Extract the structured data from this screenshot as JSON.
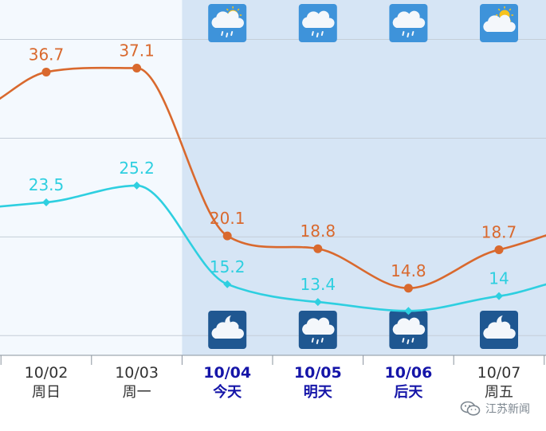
{
  "chart_data": {
    "type": "line",
    "title": "",
    "xlabel": "",
    "ylabel": "",
    "ylim": [
      8,
      44
    ],
    "grid": true,
    "categories": [
      {
        "date": "10/02",
        "day": "周日"
      },
      {
        "date": "10/03",
        "day": "周一"
      },
      {
        "date": "10/04",
        "day": "今天"
      },
      {
        "date": "10/05",
        "day": "明天"
      },
      {
        "date": "10/06",
        "day": "后天"
      },
      {
        "date": "10/07",
        "day": "周五"
      }
    ],
    "highlight_categories": [
      2,
      3,
      4
    ],
    "series": [
      {
        "color": "#d9692e",
        "values": [
          36.7,
          37.1,
          20.1,
          18.8,
          14.8,
          18.7
        ],
        "labels": [
          "36.7",
          "37.1",
          "20.1",
          "18.8",
          "14.8",
          "18.7"
        ]
      },
      {
        "color": "#2ecfe0",
        "values": [
          23.5,
          25.2,
          15.2,
          13.4,
          12.5,
          14.0
        ],
        "labels": [
          "23.5",
          "25.2",
          "15.2",
          "13.4",
          "",
          "14"
        ]
      }
    ],
    "day_icons": [
      {
        "index": 2,
        "icon": "sun-cloud-rain-icon"
      },
      {
        "index": 3,
        "icon": "cloud-rain-icon"
      },
      {
        "index": 4,
        "icon": "cloud-rain-icon"
      },
      {
        "index": 5,
        "icon": "sun-cloud-icon"
      }
    ],
    "night_icons": [
      {
        "index": 2,
        "icon": "moon-cloud-icon"
      },
      {
        "index": 3,
        "icon": "cloud-rain-icon"
      },
      {
        "index": 4,
        "icon": "cloud-rain-icon"
      },
      {
        "index": 5,
        "icon": "moon-cloud-icon"
      }
    ],
    "colors": {
      "forecast_band": "#d6e5f5",
      "past_band": "#f4f9fe",
      "highlight_label": "#1515a8",
      "normal_label": "#333333"
    }
  },
  "watermark": {
    "text": "江苏新闻",
    "icon": "wechat-icon"
  }
}
